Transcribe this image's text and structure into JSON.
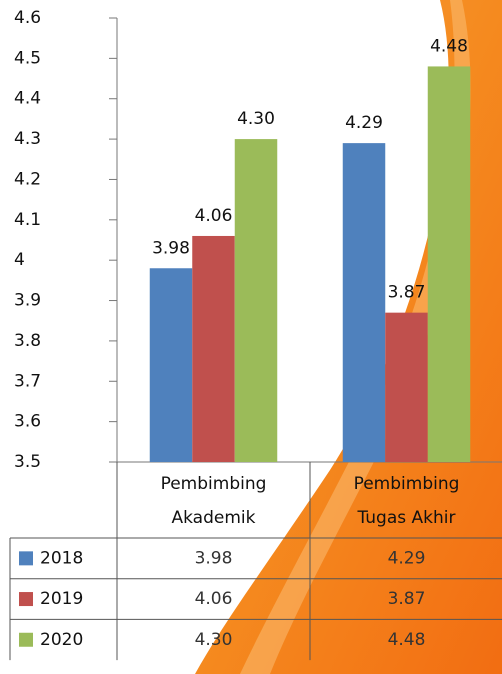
{
  "chart_data": {
    "type": "bar",
    "categories": [
      "Pembimbing Akademik",
      "Pembimbing Tugas Akhir"
    ],
    "series": [
      {
        "name": "2018",
        "color": "#4f81bd",
        "values": [
          3.98,
          4.29
        ],
        "value_labels": [
          "3.98",
          "4.29"
        ]
      },
      {
        "name": "2019",
        "color": "#c0504d",
        "values": [
          4.06,
          3.87
        ],
        "value_labels": [
          "4.06",
          "3.87"
        ]
      },
      {
        "name": "2020",
        "color": "#9bbb59",
        "values": [
          4.3,
          4.48
        ],
        "value_labels": [
          "4.30",
          "4.48"
        ]
      }
    ],
    "ylim": [
      3.5,
      4.6
    ],
    "yticks": [
      3.5,
      3.6,
      3.7,
      3.8,
      3.9,
      4,
      4.1,
      4.2,
      4.3,
      4.4,
      4.5,
      4.6
    ],
    "grid": false
  }
}
